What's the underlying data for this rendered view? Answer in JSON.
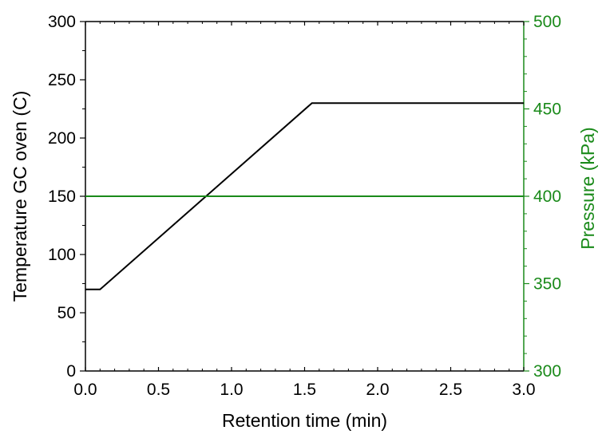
{
  "chart_data": {
    "type": "line",
    "title": "",
    "xlabel": "Retention time (min)",
    "ylabel": "Temperature GC oven (C)",
    "y2label": "Pressure (kPa)",
    "xlim": [
      0,
      3.0
    ],
    "ylim": [
      0,
      300
    ],
    "y2lim": [
      300,
      500
    ],
    "x_ticks": [
      "0.0",
      "0.5",
      "1.0",
      "1.5",
      "2.0",
      "2.5",
      "3.0"
    ],
    "y_ticks": [
      "0",
      "50",
      "100",
      "150",
      "200",
      "250",
      "300"
    ],
    "y2_ticks": [
      "300",
      "350",
      "400",
      "450",
      "500"
    ],
    "grid": false,
    "legend": "none",
    "series": [
      {
        "axis": "left",
        "color": "#000000",
        "x": [
          0.0,
          0.1,
          1.55,
          3.0
        ],
        "y": [
          70,
          70,
          230,
          230
        ]
      },
      {
        "axis": "right",
        "color": "#1a8a1a",
        "x": [
          0.0,
          3.0
        ],
        "y": [
          400,
          400
        ]
      }
    ]
  }
}
